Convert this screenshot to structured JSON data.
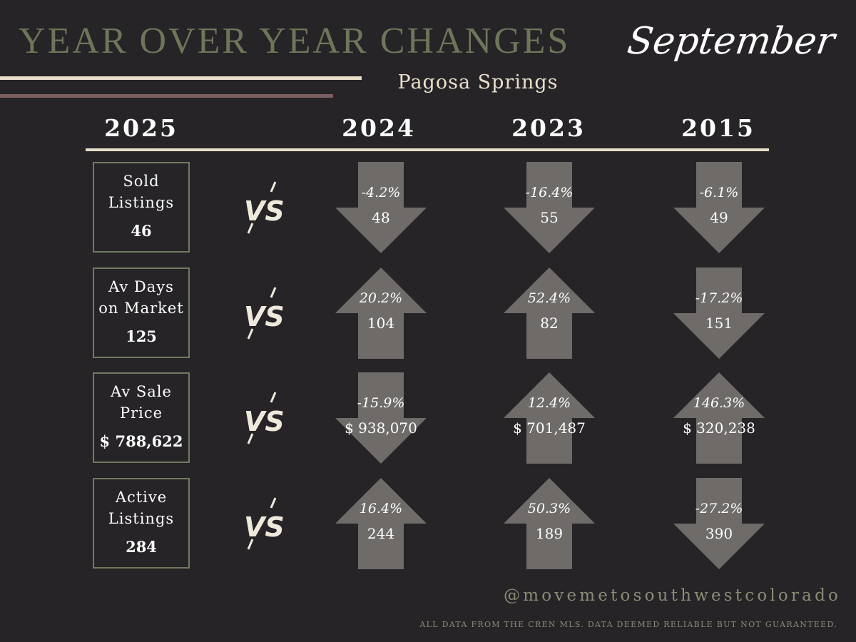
{
  "header": {
    "title": "YEAR OVER YEAR CHANGES",
    "month": "September",
    "location": "Pagosa Springs"
  },
  "years": {
    "current": "2025",
    "compare": [
      "2024",
      "2023",
      "2015"
    ]
  },
  "vs_label": "VS",
  "colors": {
    "background": "#262427",
    "title_olive": "#6e7659",
    "cream": "#e7dfca",
    "mauve": "#7b5f62",
    "arrow_gray": "#6f6b68",
    "box_border": "#717a5d"
  },
  "metrics": [
    {
      "label": "Sold\nListings",
      "value": "46",
      "comparisons": [
        {
          "pct": "-4.2%",
          "value": "48",
          "direction": "down"
        },
        {
          "pct": "-16.4%",
          "value": "55",
          "direction": "down"
        },
        {
          "pct": "-6.1%",
          "value": "49",
          "direction": "down"
        }
      ]
    },
    {
      "label": "Av Days\non Market",
      "value": "125",
      "comparisons": [
        {
          "pct": "20.2%",
          "value": "104",
          "direction": "up"
        },
        {
          "pct": "52.4%",
          "value": "82",
          "direction": "up"
        },
        {
          "pct": "-17.2%",
          "value": "151",
          "direction": "down"
        }
      ]
    },
    {
      "label": "Av Sale\nPrice",
      "value": "$ 788,622",
      "comparisons": [
        {
          "pct": "-15.9%",
          "value": "$ 938,070",
          "direction": "down"
        },
        {
          "pct": "12.4%",
          "value": "$ 701,487",
          "direction": "up"
        },
        {
          "pct": "146.3%",
          "value": "$ 320,238",
          "direction": "up"
        }
      ]
    },
    {
      "label": "Active\nListings",
      "value": "284",
      "comparisons": [
        {
          "pct": "16.4%",
          "value": "244",
          "direction": "up"
        },
        {
          "pct": "50.3%",
          "value": "189",
          "direction": "up"
        },
        {
          "pct": "-27.2%",
          "value": "390",
          "direction": "down"
        }
      ]
    }
  ],
  "footer": {
    "handle": "@movemetosouthwestcolorado",
    "disclaimer": "ALL DATA FROM THE CREN MLS. DATA DEEMED RELIABLE BUT NOT GUARANTEED."
  }
}
